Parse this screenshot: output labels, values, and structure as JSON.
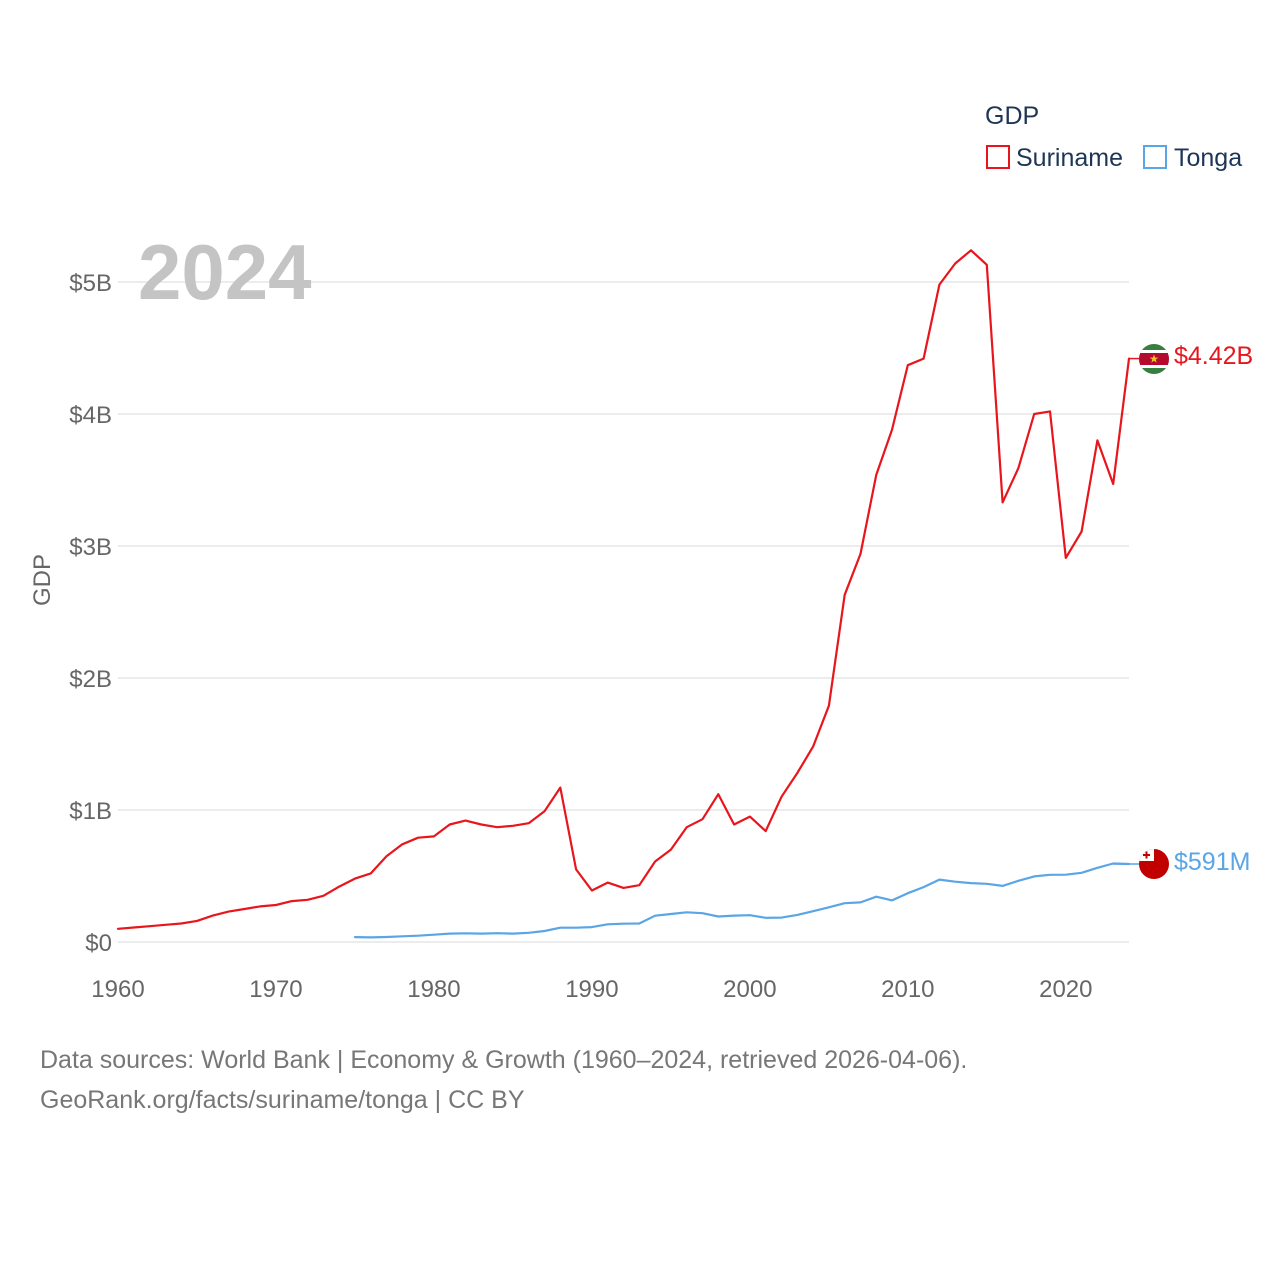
{
  "chart_data": {
    "type": "line",
    "title": "",
    "watermark_year": "2024",
    "xlabel": "",
    "ylabel": "GDP",
    "xlim": [
      1960,
      2024
    ],
    "ylim": [
      0,
      5
    ],
    "y_unit": "billion USD",
    "x_ticks": [
      1960,
      1970,
      1980,
      1990,
      2000,
      2010,
      2020
    ],
    "y_ticks": [
      {
        "value": 0,
        "label": "$0"
      },
      {
        "value": 1,
        "label": "$1B"
      },
      {
        "value": 2,
        "label": "$2B"
      },
      {
        "value": 3,
        "label": "$3B"
      },
      {
        "value": 4,
        "label": "$4B"
      },
      {
        "value": 5,
        "label": "$5B"
      }
    ],
    "legend": {
      "title": "GDP",
      "position": "top-right"
    },
    "series": [
      {
        "name": "Suriname",
        "color": "#e8161c",
        "end_label": "$4.42B",
        "flag": "suriname-flag",
        "x": [
          1960,
          1961,
          1962,
          1963,
          1964,
          1965,
          1966,
          1967,
          1968,
          1969,
          1970,
          1971,
          1972,
          1973,
          1974,
          1975,
          1976,
          1977,
          1978,
          1979,
          1980,
          1981,
          1982,
          1983,
          1984,
          1985,
          1986,
          1987,
          1988,
          1989,
          1990,
          1991,
          1992,
          1993,
          1994,
          1995,
          1996,
          1997,
          1998,
          1999,
          2000,
          2001,
          2002,
          2003,
          2004,
          2005,
          2006,
          2007,
          2008,
          2009,
          2010,
          2011,
          2012,
          2013,
          2014,
          2015,
          2016,
          2017,
          2018,
          2019,
          2020,
          2021,
          2022,
          2023,
          2024
        ],
        "values": [
          0.1,
          0.11,
          0.12,
          0.13,
          0.14,
          0.16,
          0.2,
          0.23,
          0.25,
          0.27,
          0.28,
          0.31,
          0.32,
          0.35,
          0.42,
          0.48,
          0.52,
          0.65,
          0.74,
          0.79,
          0.8,
          0.89,
          0.92,
          0.89,
          0.87,
          0.88,
          0.9,
          0.99,
          1.17,
          0.55,
          0.39,
          0.45,
          0.41,
          0.43,
          0.61,
          0.7,
          0.87,
          0.93,
          1.12,
          0.89,
          0.95,
          0.84,
          1.1,
          1.28,
          1.48,
          1.79,
          2.63,
          2.94,
          3.54,
          3.88,
          4.37,
          4.42,
          4.98,
          5.14,
          5.24,
          5.13,
          3.33,
          3.59,
          4.0,
          4.02,
          2.91,
          3.11,
          3.8,
          3.47,
          4.42
        ]
      },
      {
        "name": "Tonga",
        "color": "#5aa5e6",
        "end_label": "$591M",
        "flag": "tonga-flag",
        "x": [
          1975,
          1976,
          1977,
          1978,
          1979,
          1980,
          1981,
          1982,
          1983,
          1984,
          1985,
          1986,
          1987,
          1988,
          1989,
          1990,
          1991,
          1992,
          1993,
          1994,
          1995,
          1996,
          1997,
          1998,
          1999,
          2000,
          2001,
          2002,
          2003,
          2004,
          2005,
          2006,
          2007,
          2008,
          2009,
          2010,
          2011,
          2012,
          2013,
          2014,
          2015,
          2016,
          2017,
          2018,
          2019,
          2020,
          2021,
          2022,
          2023,
          2024
        ],
        "values": [
          0.037,
          0.035,
          0.038,
          0.043,
          0.048,
          0.055,
          0.064,
          0.066,
          0.064,
          0.067,
          0.064,
          0.07,
          0.083,
          0.108,
          0.108,
          0.113,
          0.134,
          0.139,
          0.14,
          0.199,
          0.212,
          0.225,
          0.218,
          0.193,
          0.2,
          0.203,
          0.183,
          0.185,
          0.205,
          0.233,
          0.263,
          0.294,
          0.3,
          0.343,
          0.315,
          0.37,
          0.416,
          0.473,
          0.457,
          0.446,
          0.441,
          0.425,
          0.464,
          0.497,
          0.509,
          0.51,
          0.524,
          0.562,
          0.595,
          0.591
        ]
      }
    ]
  },
  "footer": {
    "line1": "Data sources: World Bank | Economy & Growth (1960–2024, retrieved 2026-04-06).",
    "line2": "GeoRank.org/facts/suriname/tonga | CC BY"
  }
}
